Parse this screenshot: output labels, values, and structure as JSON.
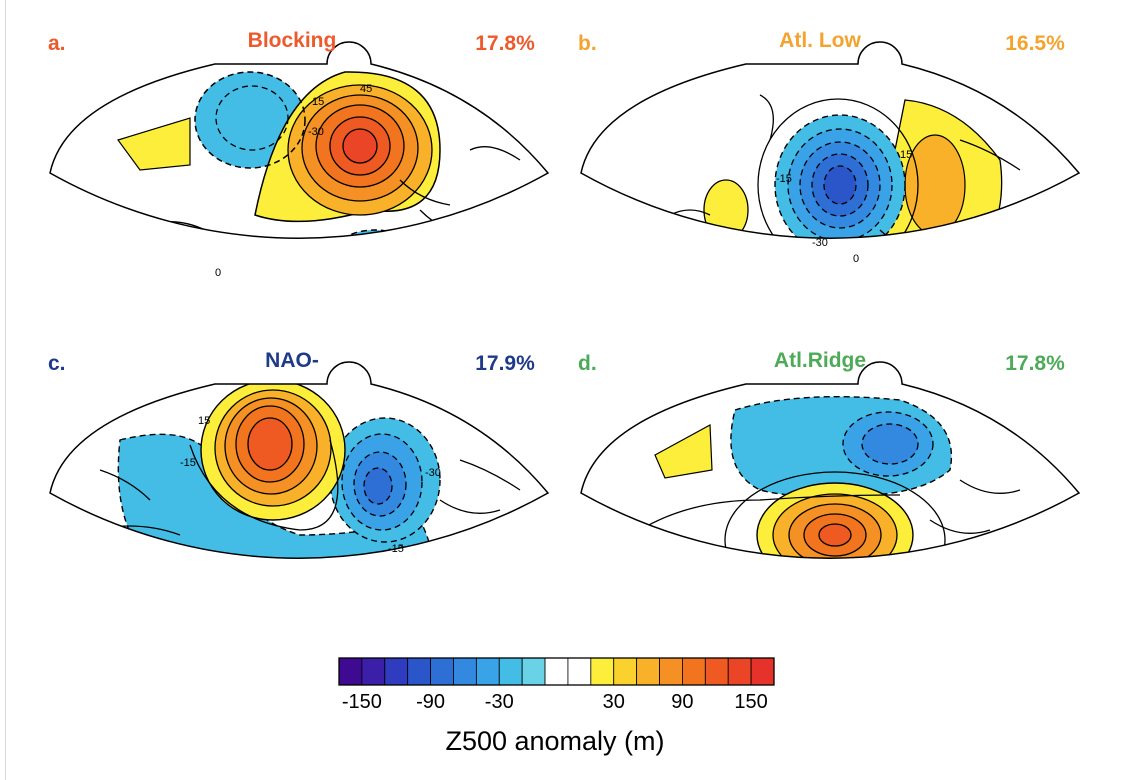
{
  "panels": [
    {
      "letter": "a.",
      "name": "Blocking",
      "pct": "17.8%",
      "color": "#ee5a2c"
    },
    {
      "letter": "b.",
      "name": "Atl. Low",
      "pct": "16.5%",
      "color": "#f3a32e"
    },
    {
      "letter": "c.",
      "name": "NAO-",
      "pct": "17.9%",
      "color": "#1e3a8a"
    },
    {
      "letter": "d.",
      "name": "Atl.Ridge",
      "pct": "17.8%",
      "color": "#4daa57"
    }
  ],
  "contour_labels": {
    "a": [
      "15",
      "45",
      "-30",
      "0"
    ],
    "b": [
      "15",
      "-15",
      "-30",
      "0"
    ],
    "c": [
      "-15",
      "15",
      "-30",
      "-15"
    ]
  },
  "colorbar": {
    "ticks": [
      "-150",
      "-90",
      "-30",
      "30",
      "90",
      "150"
    ],
    "title": "Z500 anomaly (m)",
    "colors": [
      "#3d0a91",
      "#3b1fa8",
      "#2f3cbf",
      "#2b56c9",
      "#2e6fd6",
      "#3388e0",
      "#3aa2e6",
      "#44bde6",
      "#6ad2e6",
      "#ffffff",
      "#ffffff",
      "#fcee3a",
      "#fbd12d",
      "#f8b129",
      "#f59024",
      "#f2741f",
      "#ee5a22",
      "#ea4526",
      "#e5322b"
    ]
  }
}
